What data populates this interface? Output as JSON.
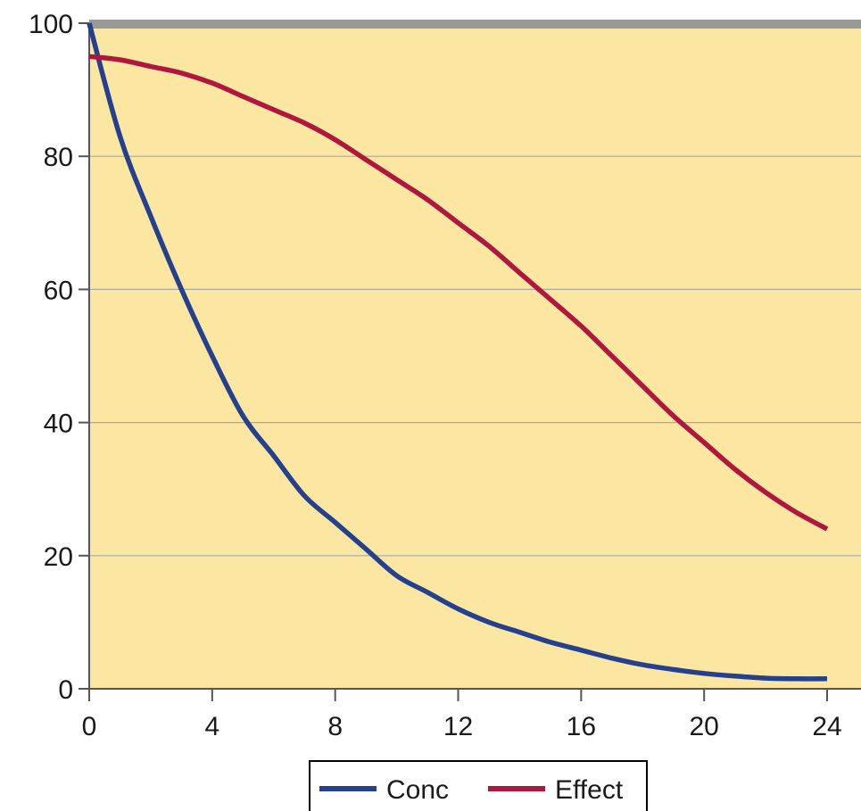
{
  "chart_data": {
    "type": "line",
    "title": "",
    "xlabel": "",
    "ylabel": "",
    "xlim": [
      0,
      25
    ],
    "ylim": [
      0,
      100
    ],
    "x_ticks": [
      "0",
      "4",
      "8",
      "12",
      "16",
      "20",
      "24"
    ],
    "y_ticks": [
      "0",
      "20",
      "40",
      "60",
      "80",
      "100"
    ],
    "grid": "horizontal",
    "legend_position": "bottom-center",
    "plot_background": "#FBE7A1",
    "top_band_color": "#999999",
    "series": [
      {
        "name": "Conc",
        "color": "#24408E",
        "x": [
          0,
          1,
          2,
          3,
          4,
          5,
          6,
          7,
          8,
          9,
          10,
          11,
          12,
          13,
          14,
          15,
          16,
          17,
          18,
          19,
          20,
          21,
          22,
          23,
          24
        ],
        "y": [
          100,
          83,
          71,
          60,
          50,
          41,
          35,
          29,
          25,
          21,
          17,
          14.5,
          12,
          10,
          8.5,
          7,
          5.8,
          4.6,
          3.6,
          2.9,
          2.3,
          1.9,
          1.6,
          1.5,
          1.5
        ]
      },
      {
        "name": "Effect",
        "color": "#B0173E",
        "x": [
          0,
          1,
          2,
          3,
          4,
          5,
          6,
          7,
          8,
          9,
          10,
          11,
          12,
          13,
          14,
          15,
          16,
          17,
          18,
          19,
          20,
          21,
          22,
          23,
          24
        ],
        "y": [
          95,
          94.5,
          93.5,
          92.5,
          91,
          89,
          87,
          85,
          82.5,
          79.5,
          76.5,
          73.5,
          70,
          66.5,
          62.5,
          58.5,
          54.5,
          50,
          45.5,
          41,
          37,
          33,
          29.5,
          26.5,
          24
        ]
      }
    ]
  }
}
